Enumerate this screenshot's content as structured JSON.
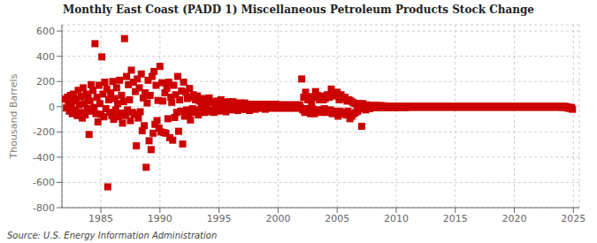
{
  "chart_data": {
    "type": "scatter",
    "title": "Monthly East Coast (PADD 1) Miscellaneous Petroleum Products Stock Change",
    "ylabel": "Thousand Barrels",
    "annotations": [
      "Source: U.S. Energy Information Administration"
    ],
    "color": "#cc0000",
    "marker": "square",
    "grid": true,
    "xlim": [
      1981.7,
      2025.5
    ],
    "xticks": [
      1985,
      1990,
      1995,
      2000,
      2005,
      2010,
      2015,
      2020,
      2025
    ],
    "ylim": [
      -800,
      650
    ],
    "yticks": [
      -800,
      -600,
      -400,
      -200,
      0,
      200,
      400,
      600
    ],
    "x": [
      1982.0,
      1982.08,
      1982.17,
      1982.25,
      1982.33,
      1982.42,
      1982.5,
      1982.58,
      1982.67,
      1982.75,
      1982.83,
      1982.92,
      1983.0,
      1983.08,
      1983.17,
      1983.25,
      1983.33,
      1983.42,
      1983.5,
      1983.58,
      1983.67,
      1983.75,
      1983.83,
      1983.92,
      1984.0,
      1984.08,
      1984.17,
      1984.25,
      1984.33,
      1984.42,
      1984.5,
      1984.58,
      1984.67,
      1984.75,
      1984.83,
      1984.92,
      1985.0,
      1985.08,
      1985.17,
      1985.25,
      1985.33,
      1985.42,
      1985.5,
      1985.58,
      1985.67,
      1985.75,
      1985.83,
      1985.92,
      1986.0,
      1986.08,
      1986.17,
      1986.25,
      1986.33,
      1986.42,
      1986.5,
      1986.58,
      1986.67,
      1986.75,
      1986.83,
      1986.92,
      1987.0,
      1987.08,
      1987.17,
      1987.25,
      1987.33,
      1987.42,
      1987.5,
      1987.58,
      1987.67,
      1987.75,
      1987.83,
      1987.92,
      1988.0,
      1988.08,
      1988.17,
      1988.25,
      1988.33,
      1988.42,
      1988.5,
      1988.58,
      1988.67,
      1988.75,
      1988.83,
      1988.92,
      1989.0,
      1989.08,
      1989.17,
      1989.25,
      1989.33,
      1989.42,
      1989.5,
      1989.58,
      1989.67,
      1989.75,
      1989.83,
      1989.92,
      1990.0,
      1990.08,
      1990.17,
      1990.25,
      1990.33,
      1990.42,
      1990.5,
      1990.58,
      1990.67,
      1990.75,
      1990.83,
      1990.92,
      1991.0,
      1991.08,
      1991.17,
      1991.25,
      1991.33,
      1991.42,
      1991.5,
      1991.58,
      1991.67,
      1991.75,
      1991.83,
      1991.92,
      1992.0,
      1992.08,
      1992.17,
      1992.25,
      1992.33,
      1992.42,
      1992.5,
      1992.58,
      1992.67,
      1992.75,
      1992.83,
      1992.92,
      1993.0,
      1993.08,
      1993.17,
      1993.25,
      1993.33,
      1993.42,
      1993.5,
      1993.58,
      1993.67,
      1993.75,
      1993.83,
      1993.92,
      1994.0,
      1994.08,
      1994.17,
      1994.25,
      1994.33,
      1994.42,
      1994.5,
      1994.58,
      1994.67,
      1994.75,
      1994.83,
      1994.92,
      1995.0,
      1995.08,
      1995.17,
      1995.25,
      1995.33,
      1995.42,
      1995.5,
      1995.58,
      1995.67,
      1995.75,
      1995.83,
      1995.92,
      1996.0,
      1996.08,
      1996.17,
      1996.25,
      1996.33,
      1996.42,
      1996.5,
      1996.58,
      1996.67,
      1996.75,
      1996.83,
      1996.92,
      1997.0,
      1997.08,
      1997.17,
      1997.25,
      1997.33,
      1997.42,
      1997.5,
      1997.58,
      1997.67,
      1997.75,
      1997.83,
      1997.92,
      1998.0,
      1998.08,
      1998.17,
      1998.25,
      1998.33,
      1998.42,
      1998.5,
      1998.58,
      1998.67,
      1998.75,
      1998.83,
      1998.92,
      1999.0,
      1999.08,
      1999.17,
      1999.25,
      1999.33,
      1999.42,
      1999.5,
      1999.58,
      1999.67,
      1999.75,
      1999.83,
      1999.92,
      2000.0,
      2000.08,
      2000.17,
      2000.25,
      2000.33,
      2000.42,
      2000.5,
      2000.58,
      2000.67,
      2000.75,
      2000.83,
      2000.92,
      2001.0,
      2001.08,
      2001.17,
      2001.25,
      2001.33,
      2001.42,
      2001.5,
      2001.58,
      2001.67,
      2001.75,
      2001.83,
      2001.92,
      2002.0,
      2002.08,
      2002.17,
      2002.25,
      2002.33,
      2002.42,
      2002.5,
      2002.58,
      2002.67,
      2002.75,
      2002.83,
      2002.92,
      2003.0,
      2003.08,
      2003.17,
      2003.25,
      2003.33,
      2003.42,
      2003.5,
      2003.58,
      2003.67,
      2003.75,
      2003.83,
      2003.92,
      2004.0,
      2004.08,
      2004.17,
      2004.25,
      2004.33,
      2004.42,
      2004.5,
      2004.58,
      2004.67,
      2004.75,
      2004.83,
      2004.92,
      2005.0,
      2005.08,
      2005.17,
      2005.25,
      2005.33,
      2005.42,
      2005.5,
      2005.58,
      2005.67,
      2005.75,
      2005.83,
      2005.92,
      2006.0,
      2006.08,
      2006.17,
      2006.25,
      2006.33,
      2006.42,
      2006.5,
      2006.58,
      2006.67,
      2006.75,
      2006.83,
      2006.92,
      2007.0,
      2007.08,
      2007.17,
      2007.25,
      2007.33,
      2007.42,
      2007.5,
      2007.58,
      2007.67,
      2007.75,
      2007.83,
      2007.92,
      2008.0,
      2008.08,
      2008.17,
      2008.25,
      2008.33,
      2008.42,
      2008.5,
      2008.58,
      2008.67,
      2008.75,
      2008.83,
      2008.92,
      2009.0,
      2009.08,
      2009.17,
      2009.25,
      2009.33,
      2009.42,
      2009.5,
      2009.58,
      2009.67,
      2009.75,
      2009.83,
      2009.92,
      2010.0,
      2010.08,
      2010.17,
      2010.25,
      2010.33,
      2010.42,
      2010.5,
      2010.58,
      2010.67,
      2010.75,
      2010.83,
      2010.92,
      2011.0,
      2011.08,
      2011.17,
      2011.25,
      2011.33,
      2011.42,
      2011.5,
      2011.58,
      2011.67,
      2011.75,
      2011.83,
      2011.92,
      2012.0,
      2012.08,
      2012.17,
      2012.25,
      2012.33,
      2012.42,
      2012.5,
      2012.58,
      2012.67,
      2012.75,
      2012.83,
      2012.92,
      2013.0,
      2013.08,
      2013.17,
      2013.25,
      2013.33,
      2013.42,
      2013.5,
      2013.58,
      2013.67,
      2013.75,
      2013.83,
      2013.92,
      2014.0,
      2014.08,
      2014.17,
      2014.25,
      2014.33,
      2014.42,
      2014.5,
      2014.58,
      2014.67,
      2014.75,
      2014.83,
      2014.92,
      2015.0,
      2015.08,
      2015.17,
      2015.25,
      2015.33,
      2015.42,
      2015.5,
      2015.58,
      2015.67,
      2015.75,
      2015.83,
      2015.92,
      2016.0,
      2016.08,
      2016.17,
      2016.25,
      2016.33,
      2016.42,
      2016.5,
      2016.58,
      2016.67,
      2016.75,
      2016.83,
      2016.92,
      2017.0,
      2017.08,
      2017.17,
      2017.25,
      2017.33,
      2017.42,
      2017.5,
      2017.58,
      2017.67,
      2017.75,
      2017.83,
      2017.92,
      2018.0,
      2018.08,
      2018.17,
      2018.25,
      2018.33,
      2018.42,
      2018.5,
      2018.58,
      2018.67,
      2018.75,
      2018.83,
      2018.92,
      2019.0,
      2019.08,
      2019.17,
      2019.25,
      2019.33,
      2019.42,
      2019.5,
      2019.58,
      2019.67,
      2019.75,
      2019.83,
      2019.92,
      2020.0,
      2020.08,
      2020.17,
      2020.25,
      2020.33,
      2020.42,
      2020.5,
      2020.58,
      2020.67,
      2020.75,
      2020.83,
      2020.92,
      2021.0,
      2021.08,
      2021.17,
      2021.25,
      2021.33,
      2021.42,
      2021.5,
      2021.58,
      2021.67,
      2021.75,
      2021.83,
      2021.92,
      2022.0,
      2022.08,
      2022.17,
      2022.25,
      2022.33,
      2022.42,
      2022.5,
      2022.58,
      2022.67,
      2022.75,
      2022.83,
      2022.92,
      2023.0,
      2023.08,
      2023.17,
      2023.25,
      2023.33,
      2023.42,
      2023.5,
      2023.58,
      2023.67,
      2023.75,
      2023.83,
      2023.92,
      2024.0,
      2024.08,
      2024.17,
      2024.25,
      2024.33,
      2024.42,
      2024.5,
      2024.58,
      2024.67,
      2024.75,
      2024.83,
      2024.92
    ],
    "values": [
      60,
      -10,
      75,
      20,
      -35,
      90,
      5,
      -55,
      100,
      45,
      -25,
      65,
      -70,
      130,
      15,
      -45,
      80,
      -90,
      150,
      25,
      -65,
      100,
      -15,
      75,
      -220,
      45,
      175,
      -35,
      130,
      -5,
      500,
      -55,
      75,
      -120,
      170,
      25,
      -60,
      395,
      100,
      -80,
      195,
      -15,
      140,
      -635,
      55,
      -45,
      110,
      -70,
      200,
      -100,
      65,
      -25,
      150,
      25,
      -80,
      210,
      -50,
      90,
      -130,
      40,
      540,
      -70,
      240,
      -25,
      175,
      55,
      -110,
      290,
      -45,
      195,
      -60,
      120,
      -310,
      220,
      -90,
      150,
      -40,
      260,
      -190,
      70,
      -150,
      110,
      -480,
      30,
      210,
      -270,
      90,
      -340,
      240,
      -210,
      280,
      -140,
      170,
      -110,
      50,
      -170,
      320,
      -200,
      190,
      45,
      -205,
      110,
      -210,
      145,
      -95,
      195,
      -245,
      75,
      35,
      -265,
      170,
      -85,
      95,
      -45,
      240,
      -195,
      55,
      -35,
      125,
      -295,
      195,
      -75,
      115,
      -25,
      65,
      -55,
      145,
      -105,
      75,
      -15,
      95,
      -45,
      55,
      -25,
      85,
      -65,
      45,
      -35,
      25,
      -5,
      65,
      -45,
      35,
      -15,
      50,
      -40,
      70,
      -30,
      40,
      -25,
      35,
      -45,
      25,
      -15,
      45,
      -35,
      30,
      -20,
      55,
      -30,
      25,
      -15,
      35,
      -40,
      25,
      -10,
      40,
      -25,
      30,
      -20,
      40,
      -10,
      30,
      -20,
      10,
      -30,
      20,
      -10,
      30,
      -20,
      20,
      -10,
      30,
      -20,
      10,
      -10,
      20,
      -30,
      10,
      -10,
      20,
      -10,
      10,
      -20,
      10,
      -10,
      20,
      -10,
      10,
      -10,
      20,
      -10,
      10,
      -20,
      10,
      -10,
      20,
      -10,
      10,
      -10,
      20,
      -10,
      10,
      -10,
      20,
      -10,
      10,
      -10,
      15,
      -10,
      10,
      -10,
      15,
      -10,
      10,
      -10,
      15,
      -10,
      10,
      -10,
      15,
      -10,
      10,
      -10,
      15,
      -10,
      10,
      -10,
      15,
      -10,
      220,
      -25,
      75,
      -45,
      115,
      -15,
      55,
      -35,
      80,
      -55,
      35,
      -15,
      75,
      -55,
      120,
      -35,
      90,
      -25,
      55,
      -45,
      85,
      -25,
      55,
      -15,
      65,
      -45,
      95,
      -35,
      75,
      -25,
      140,
      -55,
      105,
      -35,
      85,
      -45,
      115,
      -75,
      55,
      -35,
      95,
      -45,
      65,
      -55,
      75,
      -65,
      45,
      -35,
      55,
      -95,
      45,
      -75,
      35,
      -55,
      25,
      -45,
      15,
      -35,
      25,
      -15,
      15,
      -155,
      25,
      -15,
      8,
      -25,
      15,
      -8,
      8,
      -15,
      8,
      -8,
      8,
      -8,
      12,
      -8,
      8,
      -8,
      8,
      -8,
      8,
      -8,
      8,
      -8,
      5,
      -5,
      5,
      -5,
      5,
      -5,
      5,
      -5,
      5,
      -5,
      5,
      -5,
      5,
      -5,
      5,
      -5,
      5,
      -5,
      5,
      -5,
      5,
      -5,
      5,
      -5,
      3,
      -3,
      5,
      -3,
      3,
      -3,
      5,
      -3,
      3,
      -3,
      3,
      -3,
      3,
      -3,
      3,
      -3,
      3,
      -3,
      3,
      -3,
      3,
      -3,
      3,
      -3,
      3,
      -3,
      3,
      -3,
      3,
      -3,
      3,
      -3,
      3,
      -3,
      3,
      -3,
      3,
      -3,
      3,
      -3,
      3,
      -3,
      3,
      -3,
      3,
      -3,
      3,
      -3,
      3,
      -3,
      3,
      -3,
      3,
      -3,
      3,
      -3,
      3,
      -3,
      3,
      -3,
      3,
      -3,
      3,
      -3,
      3,
      -3,
      3,
      -3,
      3,
      -3,
      3,
      -3,
      3,
      -3,
      3,
      -3,
      3,
      -3,
      3,
      -3,
      3,
      -3,
      3,
      -3,
      3,
      -3,
      3,
      -3,
      3,
      -3,
      3,
      -3,
      3,
      -3,
      3,
      -3,
      3,
      -3,
      3,
      -3,
      3,
      -3,
      3,
      -3,
      3,
      -3,
      3,
      -3,
      3,
      -3,
      3,
      -3,
      3,
      -3,
      3,
      -3,
      3,
      -3,
      3,
      -3,
      3,
      -3,
      3,
      -3,
      3,
      -3,
      3,
      -3,
      3,
      -3,
      3,
      -3,
      3,
      -3,
      3,
      -3,
      3,
      -3,
      3,
      -3,
      3,
      -3,
      3,
      -3,
      3,
      -3,
      3,
      -3,
      3,
      -3,
      3,
      -3,
      3,
      -3,
      3,
      -3,
      3,
      -5,
      3,
      -5,
      3,
      -5,
      -5,
      -12,
      -5,
      -12,
      -5,
      -20
    ]
  }
}
